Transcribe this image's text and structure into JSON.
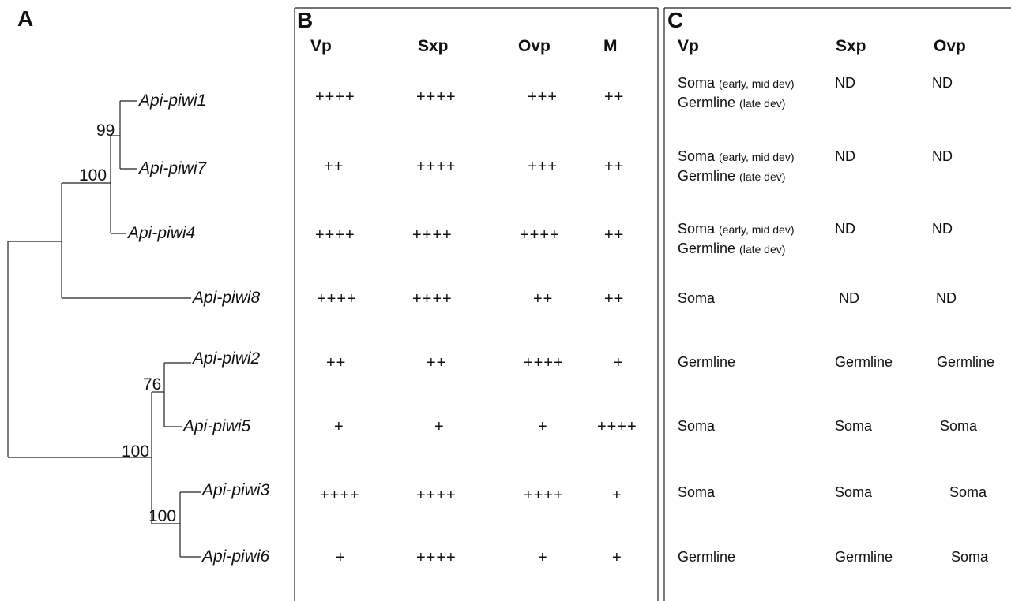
{
  "panels": {
    "a": "A",
    "b": "B",
    "c": "C"
  },
  "tree": {
    "taxa": {
      "piwi1": "Api-piwi1",
      "piwi7": "Api-piwi7",
      "piwi4": "Api-piwi4",
      "piwi8": "Api-piwi8",
      "piwi2": "Api-piwi2",
      "piwi5": "Api-piwi5",
      "piwi3": "Api-piwi3",
      "piwi6": "Api-piwi6"
    },
    "bootstrap": {
      "n_1_7": "99",
      "n_1_7_4": "100",
      "n_2_5": "76",
      "n_lower": "100",
      "n_3_6": "100"
    }
  },
  "expression_table": {
    "headers": [
      "Vp",
      "Sxp",
      "Ovp",
      "M"
    ],
    "rows": [
      [
        "++++",
        "++++",
        "+++",
        "++"
      ],
      [
        "++",
        "++++",
        "+++",
        "++"
      ],
      [
        "++++",
        "++++",
        "++++",
        "++"
      ],
      [
        "++++",
        "++++",
        "++",
        "++"
      ],
      [
        "++",
        "++",
        "++++",
        "+"
      ],
      [
        "+",
        "+",
        "+",
        "++++"
      ],
      [
        "++++",
        "++++",
        "++++",
        "+"
      ],
      [
        "+",
        "++++",
        "+",
        "+"
      ]
    ]
  },
  "localization_table": {
    "headers": [
      "Vp",
      "Sxp",
      "Ovp"
    ],
    "soma_word": "Soma",
    "soma_detail": "(early, mid dev)",
    "germline_word": "Germline",
    "germline_detail": "(late dev)",
    "rows": [
      [
        "",
        "ND",
        "ND"
      ],
      [
        "",
        "ND",
        "ND"
      ],
      [
        "",
        "ND",
        "ND"
      ],
      [
        "Soma",
        "ND",
        "ND"
      ],
      [
        "Germline",
        "Germline",
        "Germline"
      ],
      [
        "Soma",
        "Soma",
        "Soma"
      ],
      [
        "Soma",
        "Soma",
        "Soma"
      ],
      [
        "Germline",
        "Germline",
        "Soma"
      ]
    ]
  }
}
